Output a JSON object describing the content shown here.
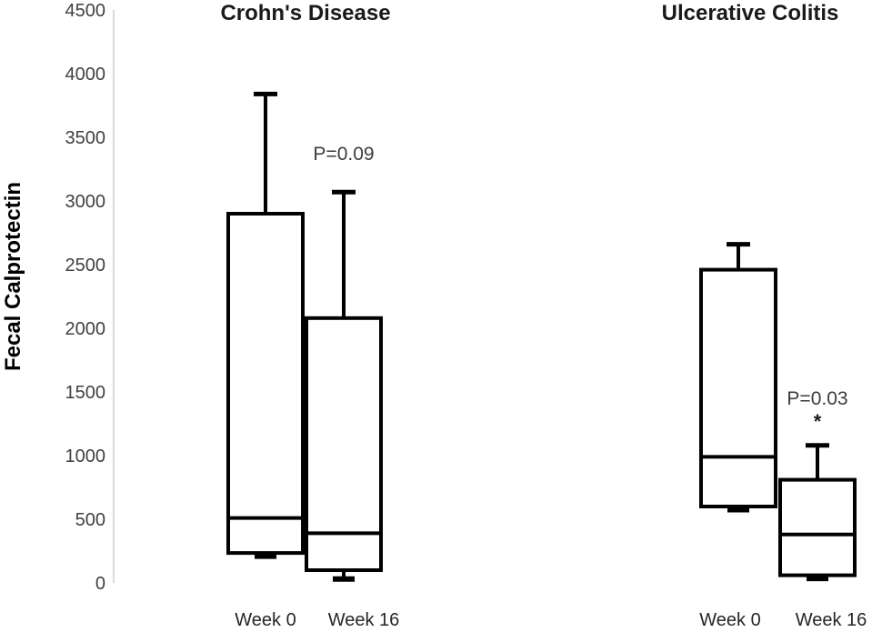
{
  "chart_data": {
    "type": "boxplot",
    "ylabel": "Fecal Calprotectin",
    "ylim": [
      0,
      4500
    ],
    "ytick_step": 500,
    "yticks": [
      0,
      500,
      1000,
      1500,
      2000,
      2500,
      3000,
      3500,
      4000,
      4500
    ],
    "grid": false,
    "legend": "none",
    "groups": [
      {
        "title": "Crohn's Disease",
        "annotation": {
          "text": "P=0.09",
          "star": "",
          "y_value": 3370
        },
        "boxes": [
          {
            "label": "Week 0",
            "min": 210,
            "q1": 235,
            "median": 510,
            "q3": 2900,
            "max": 3840
          },
          {
            "label": "Week 16",
            "min": 30,
            "q1": 100,
            "median": 390,
            "q3": 2080,
            "max": 3070
          }
        ]
      },
      {
        "title": "Ulcerative Colitis",
        "annotation": {
          "text": "P=0.03",
          "star": "*",
          "y_value": 1450
        },
        "boxes": [
          {
            "label": "Week 0",
            "min": 575,
            "q1": 600,
            "median": 990,
            "q3": 2460,
            "max": 2660
          },
          {
            "label": "Week 16",
            "min": 35,
            "q1": 60,
            "median": 380,
            "q3": 810,
            "max": 1080
          }
        ]
      }
    ],
    "colors": {
      "background": "#ffffff",
      "box_stroke": "#000000",
      "box_fill": "#ffffff",
      "axis_line": "#d9d9d9",
      "tick_label": "#404040",
      "x_label": "#262626",
      "title": "#1a1a1a",
      "annotation": "#3c3c3c",
      "star": "#1a1a1a"
    }
  }
}
